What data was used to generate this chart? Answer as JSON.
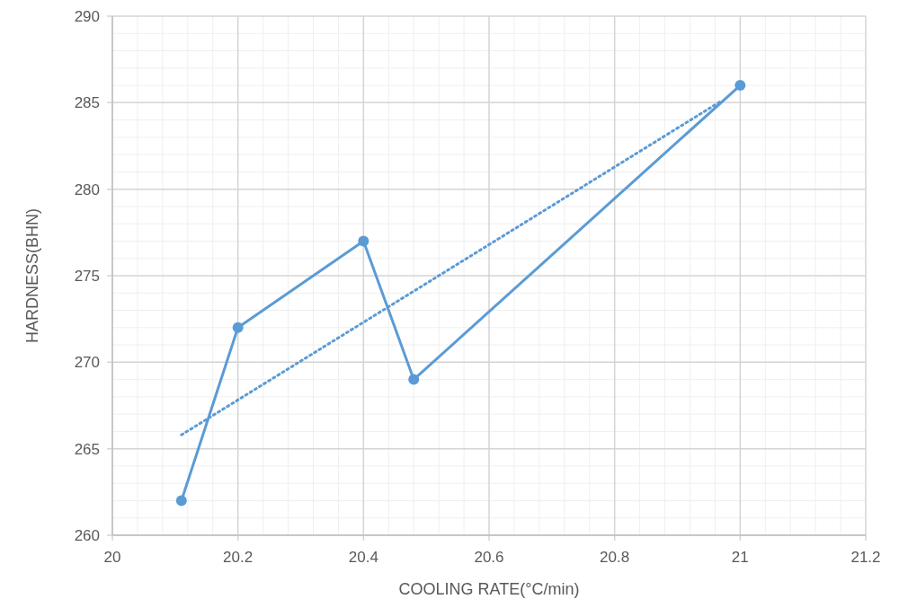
{
  "chart_data": {
    "type": "line",
    "xlabel": "COOLING RATE(°C/min)",
    "ylabel": "HARDNESS(BHN)",
    "x": [
      20.11,
      20.2,
      20.4,
      20.48,
      21
    ],
    "series": [
      {
        "color": "#5b9bd5",
        "values": [
          262,
          272,
          277,
          269,
          286
        ],
        "marker": "circle",
        "line_style": "solid"
      },
      {
        "type": "line",
        "color": "#5b9bd5",
        "x": [
          20.11,
          20.97
        ],
        "values": [
          265.8,
          285.1
        ],
        "marker": "none",
        "line_style": "dotted"
      }
    ],
    "xlim": [
      20,
      21.2
    ],
    "xticks": [
      20,
      20.2,
      20.4,
      20.6,
      20.8,
      21,
      21.2
    ],
    "ylim": [
      260,
      290
    ],
    "yticks": [
      260,
      265,
      270,
      275,
      280,
      285,
      290
    ],
    "grid": true
  }
}
